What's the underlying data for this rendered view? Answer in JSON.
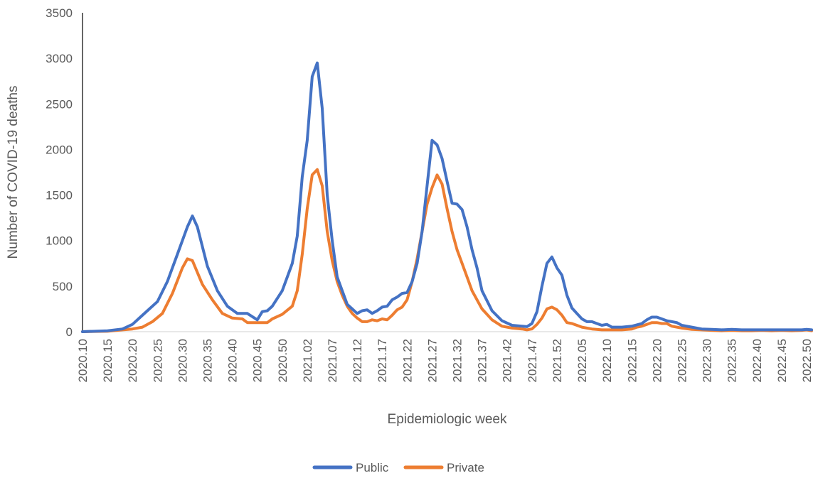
{
  "chart_data": {
    "type": "line",
    "title": "",
    "xlabel": "Epidemiologic week",
    "ylabel": "Number of COVID-19 deaths",
    "ylim": [
      0,
      3500
    ],
    "yticks": [
      0,
      500,
      1000,
      1500,
      2000,
      2500,
      3000,
      3500
    ],
    "xtick_labels": [
      "2020.10",
      "2020.15",
      "2020.20",
      "2020.25",
      "2020.30",
      "2020.35",
      "2020.40",
      "2020.45",
      "2020.50",
      "2021.02",
      "2021.07",
      "2021.12",
      "2021.17",
      "2021.22",
      "2021.27",
      "2021.32",
      "2021.37",
      "2021.42",
      "2021.47",
      "2021.52",
      "2022.05",
      "2022.10",
      "2022.15",
      "2022.20",
      "2022.25",
      "2022.30",
      "2022.35",
      "2022.40",
      "2022.45",
      "2022.50"
    ],
    "grid": false,
    "legend_position": "bottom",
    "colors": {
      "Public": "#4472C4",
      "Private": "#ED7D31"
    },
    "series": [
      {
        "name": "Public",
        "keypoints": [
          [
            0,
            0
          ],
          [
            5,
            10
          ],
          [
            8,
            30
          ],
          [
            10,
            80
          ],
          [
            12,
            180
          ],
          [
            15,
            330
          ],
          [
            17,
            550
          ],
          [
            19,
            850
          ],
          [
            21,
            1150
          ],
          [
            22,
            1270
          ],
          [
            23,
            1150
          ],
          [
            25,
            720
          ],
          [
            27,
            450
          ],
          [
            29,
            280
          ],
          [
            31,
            200
          ],
          [
            33,
            200
          ],
          [
            35,
            130
          ],
          [
            36,
            220
          ],
          [
            37,
            230
          ],
          [
            38,
            280
          ],
          [
            40,
            450
          ],
          [
            42,
            750
          ],
          [
            43,
            1050
          ],
          [
            44,
            1700
          ],
          [
            45,
            2100
          ],
          [
            46,
            2800
          ],
          [
            47,
            2950
          ],
          [
            48,
            2450
          ],
          [
            49,
            1500
          ],
          [
            50,
            1000
          ],
          [
            51,
            600
          ],
          [
            53,
            300
          ],
          [
            54,
            250
          ],
          [
            55,
            200
          ],
          [
            56,
            230
          ],
          [
            57,
            240
          ],
          [
            58,
            200
          ],
          [
            59,
            230
          ],
          [
            60,
            270
          ],
          [
            61,
            280
          ],
          [
            62,
            350
          ],
          [
            63,
            380
          ],
          [
            64,
            420
          ],
          [
            65,
            430
          ],
          [
            66,
            550
          ],
          [
            67,
            750
          ],
          [
            68,
            1100
          ],
          [
            69,
            1600
          ],
          [
            70,
            2100
          ],
          [
            71,
            2050
          ],
          [
            72,
            1900
          ],
          [
            73,
            1650
          ],
          [
            74,
            1410
          ],
          [
            75,
            1400
          ],
          [
            76,
            1340
          ],
          [
            77,
            1150
          ],
          [
            78,
            900
          ],
          [
            79,
            700
          ],
          [
            80,
            450
          ],
          [
            82,
            230
          ],
          [
            84,
            120
          ],
          [
            86,
            70
          ],
          [
            88,
            60
          ],
          [
            89,
            55
          ],
          [
            90,
            90
          ],
          [
            91,
            220
          ],
          [
            92,
            500
          ],
          [
            93,
            750
          ],
          [
            94,
            820
          ],
          [
            95,
            700
          ],
          [
            96,
            620
          ],
          [
            97,
            400
          ],
          [
            98,
            260
          ],
          [
            99,
            200
          ],
          [
            100,
            140
          ],
          [
            101,
            110
          ],
          [
            102,
            110
          ],
          [
            103,
            90
          ],
          [
            104,
            70
          ],
          [
            105,
            80
          ],
          [
            106,
            50
          ],
          [
            108,
            50
          ],
          [
            110,
            60
          ],
          [
            112,
            90
          ],
          [
            113,
            130
          ],
          [
            114,
            160
          ],
          [
            115,
            160
          ],
          [
            116,
            140
          ],
          [
            117,
            120
          ],
          [
            118,
            110
          ],
          [
            119,
            100
          ],
          [
            120,
            70
          ],
          [
            122,
            50
          ],
          [
            124,
            30
          ],
          [
            126,
            25
          ],
          [
            128,
            20
          ],
          [
            130,
            25
          ],
          [
            132,
            20
          ],
          [
            134,
            20
          ],
          [
            136,
            20
          ],
          [
            138,
            20
          ],
          [
            140,
            20
          ],
          [
            142,
            20
          ],
          [
            144,
            20
          ],
          [
            145,
            25
          ],
          [
            146,
            20
          ]
        ]
      },
      {
        "name": "Private",
        "keypoints": [
          [
            0,
            0
          ],
          [
            5,
            5
          ],
          [
            8,
            20
          ],
          [
            10,
            30
          ],
          [
            12,
            50
          ],
          [
            14,
            110
          ],
          [
            16,
            200
          ],
          [
            18,
            420
          ],
          [
            20,
            700
          ],
          [
            21,
            800
          ],
          [
            22,
            780
          ],
          [
            23,
            650
          ],
          [
            24,
            520
          ],
          [
            26,
            350
          ],
          [
            28,
            200
          ],
          [
            30,
            150
          ],
          [
            32,
            140
          ],
          [
            33,
            100
          ],
          [
            35,
            100
          ],
          [
            37,
            100
          ],
          [
            38,
            140
          ],
          [
            40,
            190
          ],
          [
            42,
            280
          ],
          [
            43,
            450
          ],
          [
            44,
            850
          ],
          [
            45,
            1350
          ],
          [
            46,
            1720
          ],
          [
            47,
            1780
          ],
          [
            48,
            1600
          ],
          [
            49,
            1100
          ],
          [
            50,
            780
          ],
          [
            51,
            550
          ],
          [
            52,
            400
          ],
          [
            53,
            280
          ],
          [
            54,
            200
          ],
          [
            55,
            150
          ],
          [
            56,
            110
          ],
          [
            57,
            110
          ],
          [
            58,
            130
          ],
          [
            59,
            120
          ],
          [
            60,
            140
          ],
          [
            61,
            130
          ],
          [
            62,
            180
          ],
          [
            63,
            240
          ],
          [
            64,
            270
          ],
          [
            65,
            350
          ],
          [
            66,
            550
          ],
          [
            67,
            800
          ],
          [
            68,
            1100
          ],
          [
            69,
            1400
          ],
          [
            70,
            1580
          ],
          [
            71,
            1720
          ],
          [
            72,
            1620
          ],
          [
            73,
            1350
          ],
          [
            74,
            1100
          ],
          [
            75,
            900
          ],
          [
            76,
            750
          ],
          [
            77,
            600
          ],
          [
            78,
            450
          ],
          [
            80,
            250
          ],
          [
            82,
            130
          ],
          [
            84,
            60
          ],
          [
            86,
            40
          ],
          [
            88,
            30
          ],
          [
            89,
            20
          ],
          [
            90,
            30
          ],
          [
            91,
            80
          ],
          [
            92,
            150
          ],
          [
            93,
            250
          ],
          [
            94,
            270
          ],
          [
            95,
            240
          ],
          [
            96,
            180
          ],
          [
            97,
            100
          ],
          [
            98,
            90
          ],
          [
            99,
            70
          ],
          [
            100,
            50
          ],
          [
            102,
            30
          ],
          [
            104,
            20
          ],
          [
            106,
            20
          ],
          [
            108,
            20
          ],
          [
            110,
            30
          ],
          [
            111,
            50
          ],
          [
            112,
            60
          ],
          [
            113,
            80
          ],
          [
            114,
            100
          ],
          [
            115,
            100
          ],
          [
            116,
            90
          ],
          [
            117,
            90
          ],
          [
            118,
            60
          ],
          [
            120,
            40
          ],
          [
            122,
            25
          ],
          [
            124,
            20
          ],
          [
            126,
            15
          ],
          [
            128,
            10
          ],
          [
            130,
            15
          ],
          [
            132,
            10
          ],
          [
            134,
            10
          ],
          [
            136,
            15
          ],
          [
            138,
            10
          ],
          [
            140,
            15
          ],
          [
            142,
            10
          ],
          [
            144,
            15
          ],
          [
            145,
            20
          ],
          [
            146,
            10
          ]
        ]
      }
    ]
  }
}
